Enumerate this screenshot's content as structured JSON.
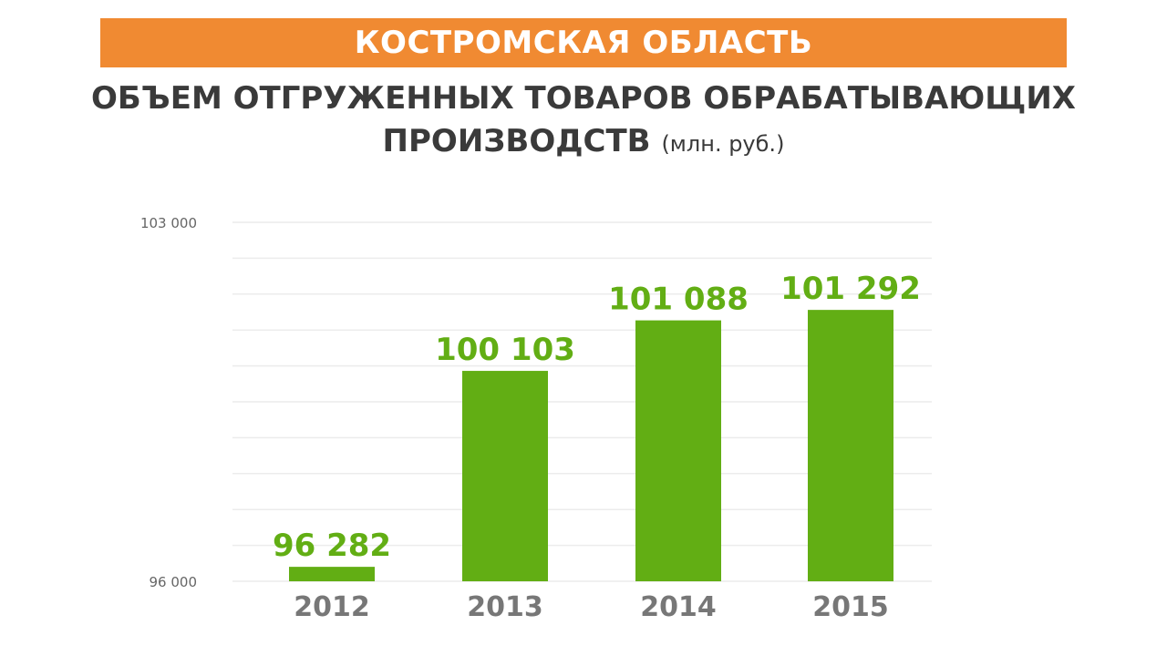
{
  "header": {
    "region": "КОСТРОМСКАЯ ОБЛАСТЬ",
    "title_line1": "ОБЪЕМ ОТГРУЖЕННЫХ ТОВАРОВ ОБРАБАТЫВАЮЩИХ",
    "title_line2": "ПРОИЗВОДСТВ",
    "unit": "(млн. руб.)"
  },
  "colors": {
    "banner": "#f08a32",
    "bar": "#62ae14",
    "value_label": "#62ae14",
    "category_label": "#777777",
    "axis_label": "#666666",
    "grid": "#ececec",
    "title": "#3a3a3a"
  },
  "chart_data": {
    "type": "bar",
    "categories": [
      "2012",
      "2013",
      "2014",
      "2015"
    ],
    "values": [
      96282,
      100103,
      101088,
      101292
    ],
    "value_labels": [
      "96 282",
      "100 103",
      "101 088",
      "101 292"
    ],
    "ylim": [
      96000,
      103000
    ],
    "yticks": [
      96000,
      103000
    ],
    "ytick_labels": [
      "96 000",
      "103 000"
    ],
    "grid": true,
    "xlabel": "",
    "ylabel": ""
  }
}
